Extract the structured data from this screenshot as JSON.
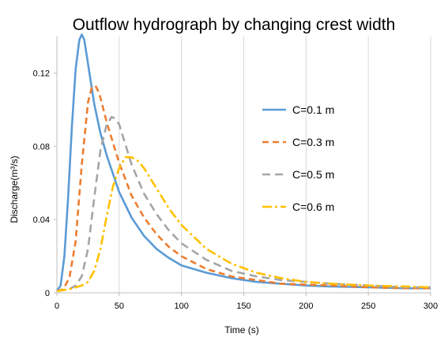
{
  "chart_data": {
    "type": "line",
    "title": "Outflow hydrograph by changing crest width",
    "xlabel": "Time (s)",
    "ylabel": "Discharge(m³/s)",
    "xlim": [
      0,
      300
    ],
    "ylim": [
      0,
      0.14
    ],
    "xticks": [
      0,
      50,
      100,
      150,
      200,
      250,
      300
    ],
    "yticks": [
      0,
      0.04,
      0.08,
      0.12
    ],
    "ytick_labels": [
      "0",
      "0.04",
      "0.08",
      "0.12"
    ],
    "grid": "vertical",
    "legend_position": "right",
    "series": [
      {
        "name": "C=0.1 m",
        "color": "#5B9BD5",
        "dash": "solid",
        "x": [
          0,
          3,
          6,
          9,
          12,
          15,
          18,
          20,
          22,
          25,
          30,
          35,
          40,
          50,
          60,
          70,
          80,
          90,
          100,
          120,
          140,
          160,
          180,
          200,
          220,
          250,
          280,
          300
        ],
        "y": [
          0.001,
          0.004,
          0.02,
          0.052,
          0.09,
          0.122,
          0.138,
          0.141,
          0.138,
          0.125,
          0.103,
          0.087,
          0.075,
          0.055,
          0.041,
          0.031,
          0.024,
          0.019,
          0.015,
          0.011,
          0.008,
          0.006,
          0.005,
          0.004,
          0.0035,
          0.003,
          0.0025,
          0.0025
        ]
      },
      {
        "name": "C=0.3 m",
        "color": "#ED7D31",
        "dash": "8,5",
        "x": [
          0,
          5,
          10,
          15,
          20,
          25,
          28,
          31,
          34,
          40,
          50,
          60,
          70,
          80,
          90,
          100,
          120,
          140,
          160,
          180,
          200,
          220,
          250,
          280,
          300
        ],
        "y": [
          0.001,
          0.002,
          0.008,
          0.028,
          0.07,
          0.104,
          0.112,
          0.113,
          0.109,
          0.093,
          0.071,
          0.053,
          0.041,
          0.032,
          0.025,
          0.02,
          0.013,
          0.009,
          0.007,
          0.005,
          0.0045,
          0.004,
          0.003,
          0.0025,
          0.0025
        ]
      },
      {
        "name": "C=0.5 m",
        "color": "#A5A5A5",
        "dash": "10,6",
        "x": [
          0,
          10,
          15,
          20,
          25,
          30,
          35,
          40,
          44,
          47,
          50,
          55,
          60,
          70,
          80,
          90,
          100,
          120,
          140,
          160,
          180,
          200,
          220,
          250,
          280,
          300
        ],
        "y": [
          0.001,
          0.002,
          0.004,
          0.009,
          0.024,
          0.052,
          0.078,
          0.092,
          0.096,
          0.095,
          0.092,
          0.081,
          0.07,
          0.054,
          0.043,
          0.034,
          0.027,
          0.018,
          0.012,
          0.009,
          0.007,
          0.006,
          0.005,
          0.004,
          0.003,
          0.003
        ]
      },
      {
        "name": "C=0.6 m",
        "color": "#FFC000",
        "dash": "12,4,3,4",
        "x": [
          0,
          10,
          20,
          25,
          30,
          35,
          40,
          45,
          50,
          55,
          60,
          65,
          70,
          80,
          90,
          100,
          120,
          140,
          160,
          180,
          200,
          220,
          250,
          280,
          300
        ],
        "y": [
          0.001,
          0.002,
          0.004,
          0.006,
          0.012,
          0.024,
          0.042,
          0.058,
          0.068,
          0.074,
          0.074,
          0.072,
          0.068,
          0.057,
          0.046,
          0.037,
          0.024,
          0.016,
          0.011,
          0.008,
          0.006,
          0.005,
          0.004,
          0.0035,
          0.003
        ]
      }
    ]
  }
}
